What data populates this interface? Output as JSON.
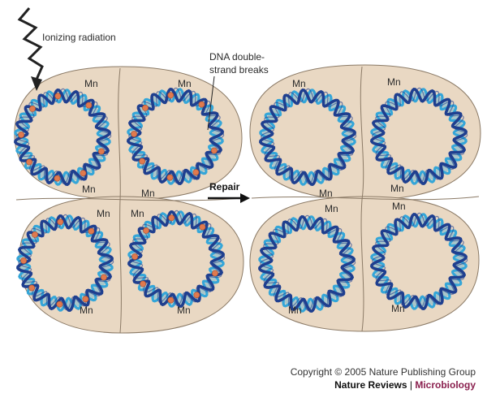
{
  "labels": {
    "radiation": "Ionizing radiation",
    "dsb_line1": "DNA double-",
    "dsb_line2": "strand breaks",
    "repair": "Repair",
    "mn": "Mn"
  },
  "footer": {
    "copyright": "Copyright © 2005 Nature Publishing Group",
    "journal_name": "Nature Reviews",
    "separator": "|",
    "journal_subject": "Microbiology"
  },
  "colors": {
    "cell_fill": "#e9d8c3",
    "cell_stroke": "#8b7a66",
    "strand_dark": "#1f3f8f",
    "strand_light": "#35a6d8",
    "break_dot": "#e07a4e",
    "subject_color": "#8a1f4e"
  },
  "panels": [
    {
      "state": "irradiated",
      "dna_circles": 4,
      "breaks": true
    },
    {
      "state": "repaired",
      "dna_circles": 4,
      "breaks": false
    }
  ]
}
